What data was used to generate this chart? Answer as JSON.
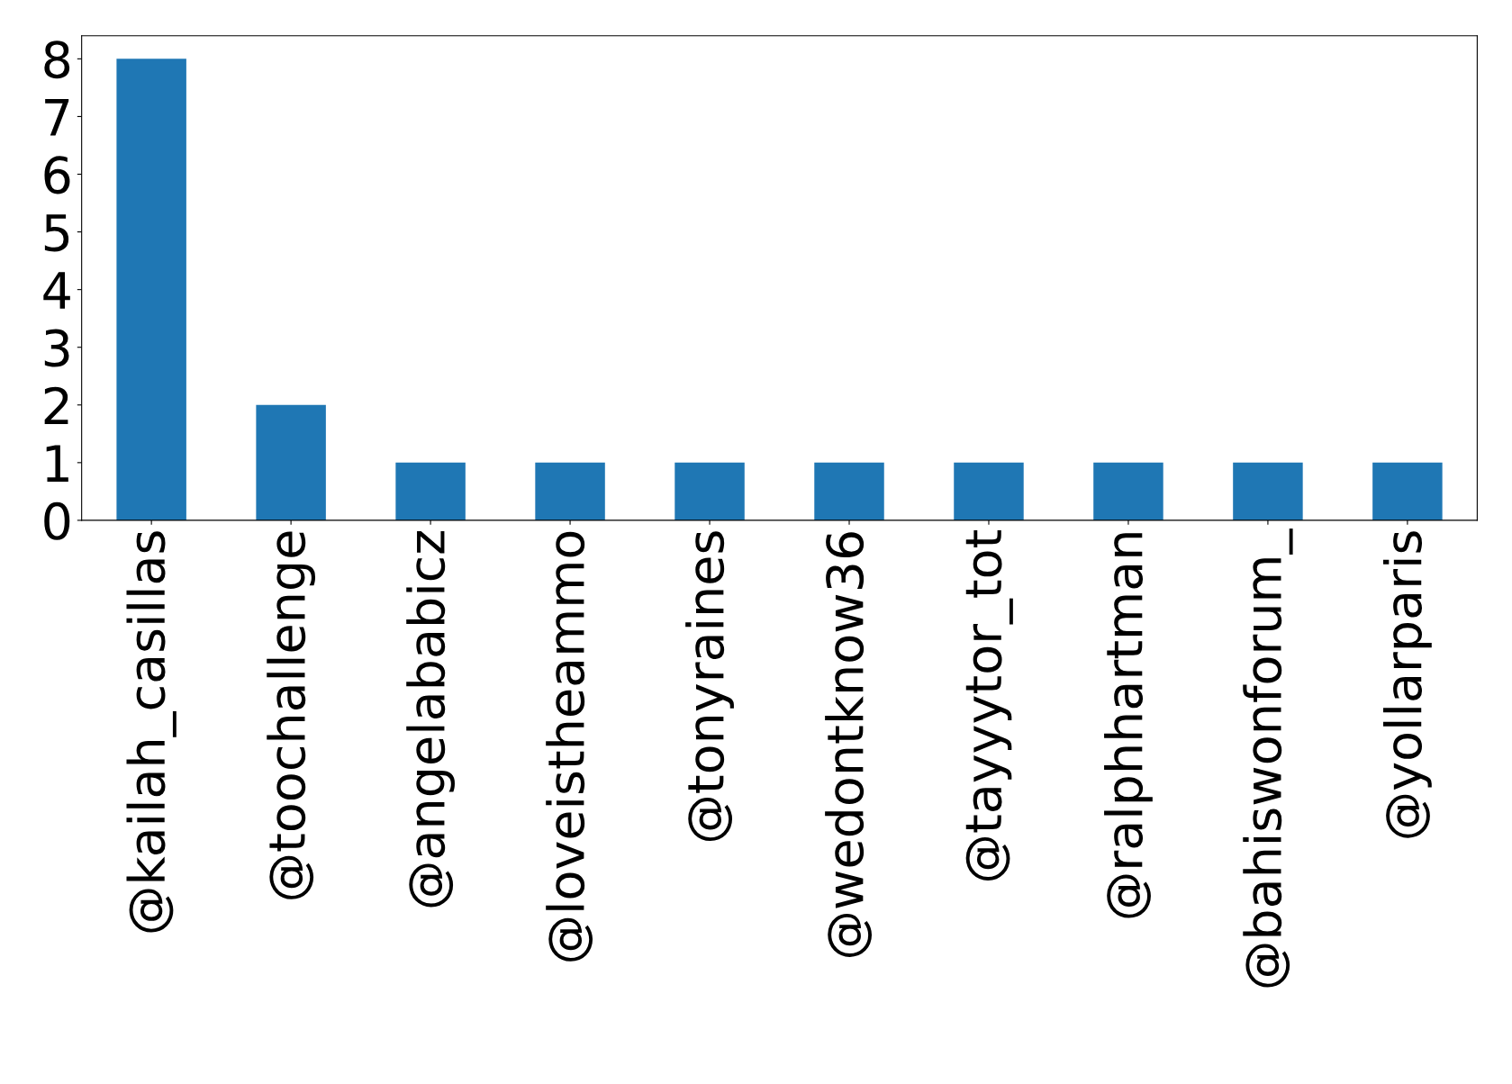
{
  "chart_data": {
    "type": "bar",
    "categories": [
      "@kailah_casillas",
      "@toochallenge",
      "@angelababicz",
      "@loveistheammo",
      "@tonyraines",
      "@wedontknow36",
      "@tayyytor_tot",
      "@ralphhartman",
      "@bahiswonforum_",
      "@yollarparis"
    ],
    "values": [
      8,
      2,
      1,
      1,
      1,
      1,
      1,
      1,
      1,
      1
    ],
    "color": "#1f77b4",
    "ylim": [
      0,
      8.4
    ],
    "yticks": [
      0,
      1,
      2,
      3,
      4,
      5,
      6,
      7,
      8
    ],
    "grid": false,
    "legend": false
  }
}
